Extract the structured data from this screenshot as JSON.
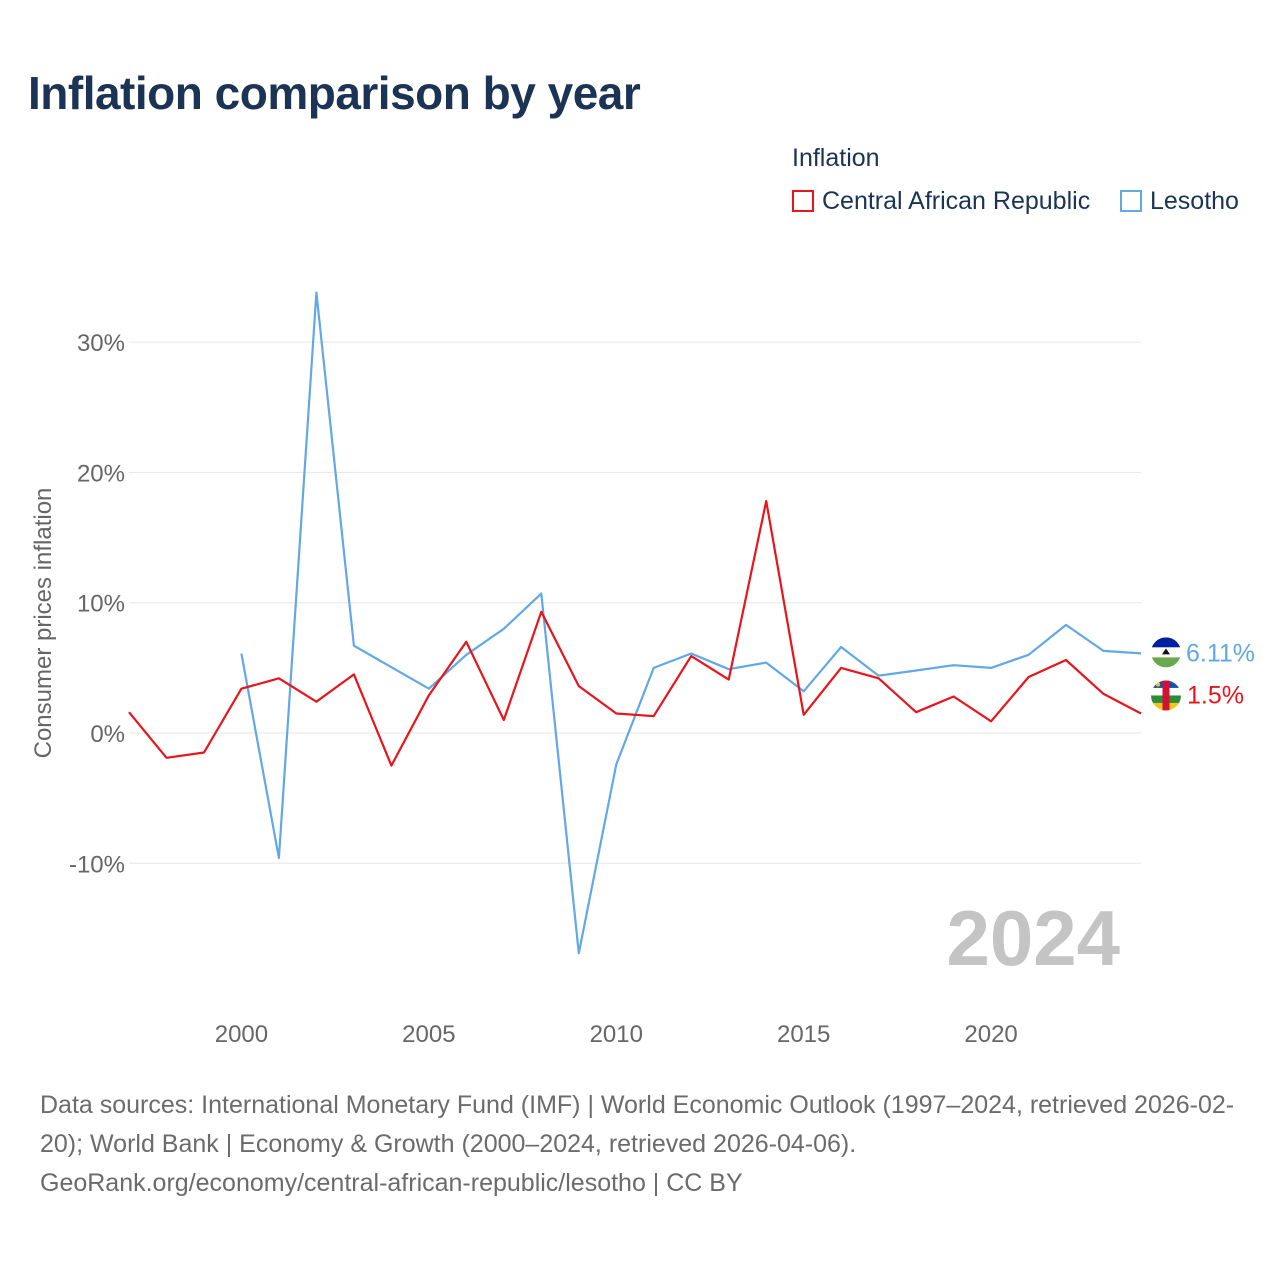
{
  "chart_data": {
    "type": "line",
    "title": "Inflation comparison by year",
    "legend": {
      "title": "Inflation",
      "position": "top-right",
      "entries": [
        "Central African Republic",
        "Lesotho"
      ]
    },
    "ylabel": "Consumer prices inflation",
    "xlabel": "",
    "ylim": [
      -19.5,
      35
    ],
    "xlim": [
      1997,
      2024
    ],
    "yticks": [
      -10,
      0,
      10,
      20,
      30
    ],
    "ytick_labels": [
      "-10%",
      "0%",
      "10%",
      "20%",
      "30%"
    ],
    "xticks": [
      2000,
      2005,
      2010,
      2015,
      2020
    ],
    "xtick_labels": [
      "2000",
      "2005",
      "2010",
      "2015",
      "2020"
    ],
    "grid": true,
    "year_watermark": "2024",
    "series": [
      {
        "name": "Central African Republic",
        "color": "#e8151b",
        "end_label": "1.5%",
        "flag": "central-african-republic-flag",
        "points": [
          [
            1997,
            1.6
          ],
          [
            1998,
            -1.9
          ],
          [
            1999,
            -1.5
          ],
          [
            2000,
            3.4
          ],
          [
            2001,
            4.2
          ],
          [
            2002,
            2.4
          ],
          [
            2003,
            4.5
          ],
          [
            2004,
            -2.5
          ],
          [
            2005,
            2.9
          ],
          [
            2006,
            7.0
          ],
          [
            2007,
            1.0
          ],
          [
            2008,
            9.3
          ],
          [
            2009,
            3.6
          ],
          [
            2010,
            1.5
          ],
          [
            2011,
            1.3
          ],
          [
            2012,
            5.9
          ],
          [
            2013,
            4.1
          ],
          [
            2014,
            17.8
          ],
          [
            2015,
            1.4
          ],
          [
            2016,
            5.0
          ],
          [
            2017,
            4.2
          ],
          [
            2018,
            1.6
          ],
          [
            2019,
            2.8
          ],
          [
            2020,
            0.9
          ],
          [
            2021,
            4.3
          ],
          [
            2022,
            5.6
          ],
          [
            2023,
            3.0
          ],
          [
            2024,
            1.5
          ]
        ]
      },
      {
        "name": "Lesotho",
        "color": "#62a8e5",
        "end_label": "6.11%",
        "flag": "lesotho-flag",
        "points": [
          [
            2000,
            6.1
          ],
          [
            2001,
            -9.6
          ],
          [
            2002,
            33.8
          ],
          [
            2003,
            6.7
          ],
          [
            2005,
            3.4
          ],
          [
            2006,
            6.0
          ],
          [
            2007,
            8.0
          ],
          [
            2008,
            10.7
          ],
          [
            2009,
            -16.9
          ],
          [
            2010,
            -2.4
          ],
          [
            2011,
            5.0
          ],
          [
            2012,
            6.1
          ],
          [
            2013,
            4.9
          ],
          [
            2014,
            5.4
          ],
          [
            2015,
            3.2
          ],
          [
            2016,
            6.6
          ],
          [
            2017,
            4.4
          ],
          [
            2018,
            4.8
          ],
          [
            2019,
            5.2
          ],
          [
            2020,
            5.0
          ],
          [
            2021,
            6.0
          ],
          [
            2022,
            8.3
          ],
          [
            2023,
            6.3
          ],
          [
            2024,
            6.11
          ]
        ]
      }
    ]
  },
  "source": {
    "line1": "Data sources: International Monetary Fund (IMF) | World Economic Outlook (1997–2024, retrieved 2026-02-20); World Bank | Economy & Growth (2000–2024, retrieved 2026-04-06).",
    "line2": "GeoRank.org/economy/central-african-republic/lesotho | CC BY"
  }
}
